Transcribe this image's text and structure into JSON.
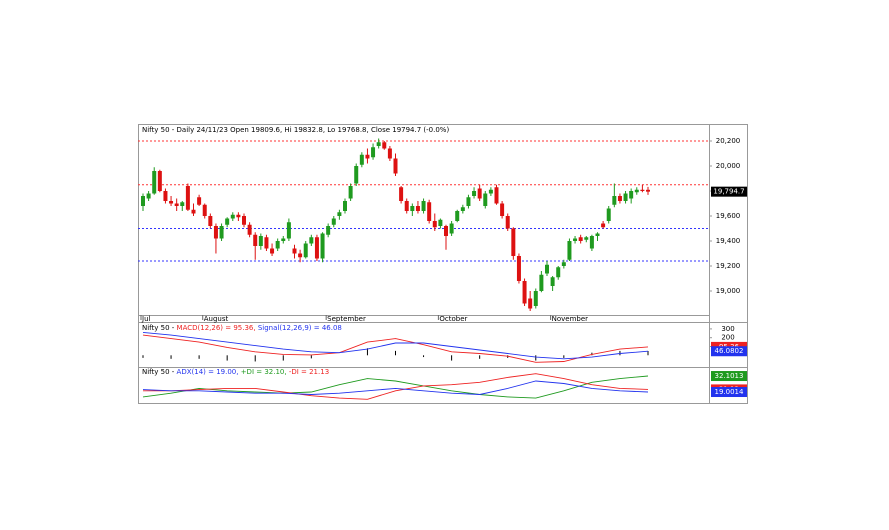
{
  "chart_data": [
    {
      "type": "candlestick",
      "title": "Nifty 50 - Daily 24/11/23 Open 19809.6, Hi 19832.8, Lo 19768.8, Close 19794.7 (-0.0%)",
      "categories": [
        "Jul",
        null,
        null,
        null,
        null,
        null,
        null,
        null,
        null,
        null,
        null,
        "August",
        null,
        null,
        null,
        null,
        null,
        null,
        null,
        null,
        null,
        null,
        null,
        null,
        null,
        null,
        null,
        null,
        null,
        null,
        null,
        null,
        null,
        "September",
        null,
        null,
        null,
        null,
        null,
        null,
        null,
        null,
        null,
        null,
        null,
        null,
        null,
        null,
        null,
        null,
        null,
        null,
        null,
        "October",
        null,
        null,
        null,
        null,
        null,
        null,
        null,
        null,
        null,
        null,
        null,
        null,
        null,
        null,
        null,
        null,
        null,
        null,
        null,
        "November",
        null,
        null,
        null,
        null,
        null,
        null,
        null,
        null,
        null,
        null,
        null,
        null,
        null,
        null,
        null,
        null,
        null
      ],
      "open": [
        19680,
        19740,
        19780,
        19960,
        19800,
        19720,
        19700,
        19680,
        19840,
        19650,
        19750,
        19690,
        19600,
        19520,
        19420,
        19530,
        19580,
        19610,
        19600,
        19530,
        19450,
        19360,
        19430,
        19340,
        19340,
        19400,
        19420,
        19340,
        19300,
        19270,
        19380,
        19430,
        19260,
        19450,
        19530,
        19600,
        19640,
        19740,
        19860,
        20010,
        20090,
        20070,
        20160,
        20190,
        20140,
        20060,
        19830,
        19720,
        19640,
        19680,
        19640,
        19710,
        19560,
        19520,
        19520,
        19460,
        19560,
        19640,
        19680,
        19760,
        19820,
        19680,
        19780,
        19830,
        19700,
        19600,
        19500,
        19280,
        19080,
        18940,
        18880,
        19000,
        19140,
        19040,
        19110,
        19200,
        19250,
        19400,
        19430,
        19410,
        19340,
        19440,
        19540,
        19560,
        19690,
        19760,
        19720,
        19740,
        19790,
        19810,
        19809.6
      ],
      "high": [
        19780,
        19800,
        19990,
        19970,
        19820,
        19760,
        19740,
        19720,
        19860,
        19700,
        19770,
        19700,
        19620,
        19540,
        19540,
        19590,
        19630,
        19630,
        19620,
        19550,
        19470,
        19460,
        19450,
        19380,
        19420,
        19440,
        19580,
        19370,
        19330,
        19400,
        19450,
        19450,
        19470,
        19540,
        19600,
        19650,
        19740,
        19860,
        20020,
        20110,
        20140,
        20180,
        20220,
        20200,
        20160,
        20100,
        19840,
        19740,
        19700,
        19720,
        19740,
        19730,
        19620,
        19580,
        19530,
        19560,
        19650,
        19690,
        19770,
        19830,
        19850,
        19800,
        19830,
        19850,
        19720,
        19620,
        19510,
        19300,
        19100,
        19000,
        19020,
        19160,
        19240,
        19120,
        19200,
        19250,
        19420,
        19440,
        19450,
        19440,
        19450,
        19470,
        19560,
        19680,
        19860,
        19780,
        19800,
        19820,
        19830,
        19850,
        19832.8
      ],
      "low": [
        19640,
        19720,
        19770,
        19790,
        19700,
        19680,
        19640,
        19640,
        19640,
        19600,
        19680,
        19580,
        19500,
        19300,
        19400,
        19510,
        19560,
        19560,
        19510,
        19430,
        19250,
        19330,
        19320,
        19280,
        19320,
        19380,
        19400,
        19260,
        19230,
        19260,
        19360,
        19240,
        19230,
        19430,
        19510,
        19570,
        19620,
        19720,
        19840,
        19990,
        20020,
        20050,
        20140,
        20130,
        20040,
        19920,
        19700,
        19620,
        19600,
        19620,
        19620,
        19540,
        19480,
        19500,
        19330,
        19440,
        19550,
        19620,
        19660,
        19740,
        19720,
        19660,
        19760,
        19690,
        19580,
        19480,
        19250,
        19060,
        18880,
        18840,
        18860,
        18990,
        19120,
        19000,
        19090,
        19180,
        19240,
        19380,
        19380,
        19390,
        19320,
        19400,
        19500,
        19540,
        19670,
        19700,
        19700,
        19700,
        19770,
        19790,
        19768.8
      ],
      "close": [
        19760,
        19780,
        19960,
        19800,
        19720,
        19700,
        19680,
        19710,
        19650,
        19620,
        19690,
        19600,
        19520,
        19420,
        19520,
        19580,
        19610,
        19590,
        19530,
        19450,
        19360,
        19440,
        19340,
        19300,
        19400,
        19420,
        19550,
        19300,
        19270,
        19380,
        19430,
        19260,
        19460,
        19520,
        19580,
        19630,
        19720,
        19840,
        20000,
        20090,
        20060,
        20150,
        20190,
        20140,
        20060,
        19940,
        19720,
        19640,
        19680,
        19640,
        19720,
        19560,
        19510,
        19570,
        19440,
        19540,
        19640,
        19670,
        19750,
        19800,
        19740,
        19780,
        19810,
        19700,
        19600,
        19500,
        19280,
        19080,
        18900,
        18860,
        19000,
        19130,
        19210,
        19110,
        19190,
        19230,
        19400,
        19420,
        19400,
        19430,
        19440,
        19460,
        19510,
        19660,
        19760,
        19720,
        19780,
        19800,
        19810,
        19800,
        19794.7
      ],
      "up_color": "#1f9a1f",
      "down_color": "#dd1111",
      "ylim": [
        18808,
        20336
      ],
      "yticks": [
        {
          "value": 19000,
          "label": "19,000"
        },
        {
          "value": 19200,
          "label": "19,200"
        },
        {
          "value": 19400,
          "label": "19,400"
        },
        {
          "value": 19600,
          "label": "19,600"
        },
        {
          "value": 19800,
          "label": "19,800"
        },
        {
          "value": 20000,
          "label": "20,000"
        },
        {
          "value": 20200,
          "label": "20,200"
        }
      ],
      "hlines": [
        {
          "value": 20200,
          "color": "#ff3333"
        },
        {
          "value": 19850,
          "color": "#ff3333"
        },
        {
          "value": 19500,
          "color": "#3333ff"
        },
        {
          "value": 19240,
          "color": "#3333ff"
        }
      ],
      "last_label": {
        "value": 19794.7,
        "label": "19,794.7"
      }
    },
    {
      "type": "line",
      "title_parts": [
        {
          "text": "Nifty 50 - ",
          "color": "#000000"
        },
        {
          "text": "MACD(12,26) = 95.36, ",
          "color": "#ee2222"
        },
        {
          "text": "Signal(12,26,9) = 46.08",
          "color": "#2233ee"
        }
      ],
      "x": [
        0,
        5,
        10,
        15,
        20,
        25,
        30,
        35,
        40,
        45,
        50,
        55,
        60,
        65,
        70,
        75,
        80,
        85,
        90
      ],
      "series": [
        {
          "name": "MACD(12,26)",
          "color": "#ee2222",
          "values": [
            230,
            190,
            150,
            90,
            40,
            10,
            5,
            30,
            150,
            190,
            120,
            40,
            20,
            -10,
            -80,
            -70,
            10,
            70,
            95.36
          ]
        },
        {
          "name": "Signal(12,26,9)",
          "color": "#2233ee",
          "values": [
            260,
            230,
            190,
            150,
            110,
            70,
            40,
            30,
            70,
            140,
            140,
            100,
            60,
            20,
            -20,
            -40,
            -20,
            20,
            46.0802
          ]
        }
      ],
      "histogram": {
        "color": "#000000",
        "values": [
          -30,
          -40,
          -40,
          -60,
          -70,
          -60,
          -35,
          0,
          80,
          50,
          -20,
          -60,
          -40,
          -30,
          -60,
          -30,
          30,
          50,
          49.28
        ]
      },
      "ylim": [
        -133,
        367
      ],
      "yticks": [
        100,
        200,
        300
      ]
    },
    {
      "type": "line",
      "title_parts": [
        {
          "text": "Nifty 50 - ",
          "color": "#000000"
        },
        {
          "text": "ADX(14) = 19.00, ",
          "color": "#2233ee"
        },
        {
          "text": "+DI = 32.10, ",
          "color": "#1f9a1f"
        },
        {
          "text": "-DI = 21.13",
          "color": "#ee2222"
        }
      ],
      "x": [
        0,
        5,
        10,
        15,
        20,
        25,
        30,
        35,
        40,
        45,
        50,
        55,
        60,
        65,
        70,
        75,
        80,
        85,
        90
      ],
      "series": [
        {
          "name": "+DI",
          "color": "#1f9a1f",
          "values": [
            15,
            18,
            22,
            20,
            19,
            18,
            19,
            25,
            30,
            28,
            24,
            20,
            17,
            15,
            14,
            20,
            27,
            30,
            32.1013
          ]
        },
        {
          "name": "-DI",
          "color": "#ee2222",
          "values": [
            20,
            20,
            21,
            22,
            22,
            19,
            16,
            14,
            13,
            20,
            24,
            25,
            27,
            31,
            34,
            30,
            25,
            22,
            21.13
          ]
        },
        {
          "name": "ADX(14)",
          "color": "#2233ee",
          "values": [
            21,
            20,
            20,
            19,
            18,
            18,
            17,
            18,
            20,
            22,
            20,
            18,
            17,
            22,
            28,
            26,
            22,
            20,
            19.0014
          ]
        }
      ],
      "ylim": [
        10,
        39.5
      ]
    }
  ]
}
